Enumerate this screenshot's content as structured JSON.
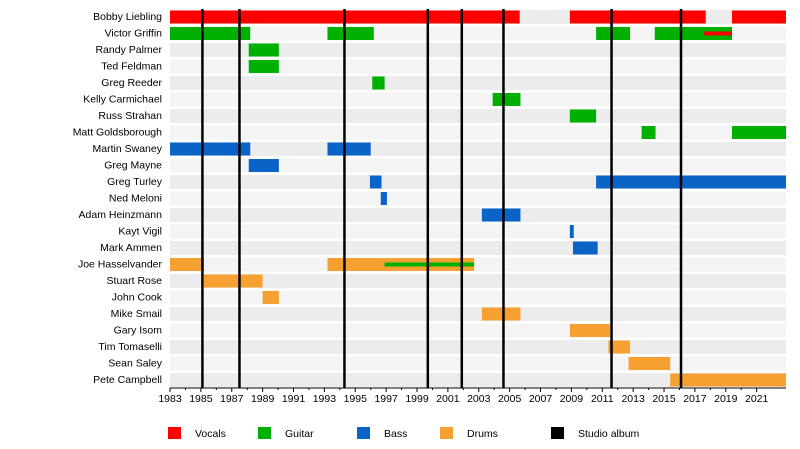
{
  "chart_data": {
    "type": "timeline",
    "categories": [
      "Bobby Liebling",
      "Victor Griffin",
      "Randy Palmer",
      "Ted Feldman",
      "Greg Reeder",
      "Kelly Carmichael",
      "Russ Strahan",
      "Matt Goldsborough",
      "Martin Swaney",
      "Greg Mayne",
      "Greg Turley",
      "Ned Meloni",
      "Adam Heinzmann",
      "Kayt Vigil",
      "Mark Ammen",
      "Joe Hasselvander",
      "Stuart Rose",
      "John Cook",
      "Mike Smail",
      "Gary Isom",
      "Tim Tomaselli",
      "Sean Saley",
      "Pete Campbell"
    ],
    "series": [
      {
        "name": "Vocals",
        "color": "#ff0000",
        "values": [
          [
            [
              1983,
              2005.65
            ],
            [
              2008.9,
              2017.7
            ],
            [
              2019.4,
              2022.9
            ]
          ],
          [],
          [],
          [],
          [],
          [],
          [],
          [],
          [],
          [],
          [],
          [],
          [],
          [],
          [],
          [],
          [],
          [],
          [],
          [],
          [],
          [],
          []
        ],
        "secondary_values": [
          [],
          [
            [
              2017.6,
              2019.4
            ]
          ],
          [],
          [],
          [],
          [],
          [],
          [],
          [],
          [],
          [],
          [],
          [],
          [],
          [],
          [],
          [],
          [],
          [],
          [],
          [],
          [],
          []
        ]
      },
      {
        "name": "Guitar",
        "color": "#00b000",
        "values": [
          [],
          [
            [
              1983,
              1988.2
            ],
            [
              1993.2,
              1996.2
            ],
            [
              2010.6,
              2012.8
            ],
            [
              2014.4,
              2019.4
            ]
          ],
          [
            [
              1988.1,
              1990.05
            ]
          ],
          [
            [
              1988.1,
              1990.05
            ]
          ],
          [
            [
              1996.1,
              1996.9
            ]
          ],
          [
            [
              2003.9,
              2005.7
            ]
          ],
          [
            [
              2008.9,
              2010.6
            ]
          ],
          [
            [
              2013.55,
              2014.45
            ],
            [
              2019.4,
              2022.9
            ]
          ],
          [],
          [],
          [],
          [],
          [],
          [],
          [],
          [],
          [],
          [],
          [],
          [],
          [],
          [],
          []
        ],
        "secondary_values": [
          [],
          [],
          [],
          [],
          [],
          [],
          [],
          [],
          [],
          [],
          [],
          [],
          [],
          [],
          [],
          [
            [
              1996.9,
              2002.7
            ]
          ],
          [],
          [],
          [],
          [],
          [],
          [],
          []
        ]
      },
      {
        "name": "Bass",
        "color": "#0a64c8",
        "values": [
          [],
          [],
          [],
          [],
          [],
          [],
          [],
          [],
          [
            [
              1983,
              1988.2
            ],
            [
              1993.2,
              1996
            ]
          ],
          [
            [
              1988.1,
              1990.05
            ]
          ],
          [
            [
              1995.95,
              1996.7
            ],
            [
              2010.6,
              2022.9
            ]
          ],
          [
            [
              1996.65,
              1997.05
            ]
          ],
          [
            [
              2003.2,
              2005.7
            ]
          ],
          [
            [
              2008.9,
              2009.15
            ]
          ],
          [
            [
              2009.1,
              2010.7
            ]
          ],
          [],
          [],
          [],
          [],
          [],
          [],
          [],
          []
        ]
      },
      {
        "name": "Drums",
        "color": "#f5a030",
        "values": [
          [],
          [],
          [],
          [],
          [],
          [],
          [],
          [],
          [],
          [],
          [],
          [],
          [],
          [],
          [],
          [
            [
              1983,
              1985.2
            ],
            [
              1993.2,
              2002.7
            ]
          ],
          [
            [
              1985.2,
              1989
            ]
          ],
          [
            [
              1989,
              1990.05
            ]
          ],
          [
            [
              2003.2,
              2005.7
            ]
          ],
          [
            [
              2008.9,
              2011.5
            ]
          ],
          [
            [
              2011.4,
              2012.8
            ]
          ],
          [
            [
              2012.7,
              2015.4
            ]
          ],
          [
            [
              2015.4,
              2022.9
            ]
          ]
        ]
      }
    ],
    "markers": {
      "name": "Studio album",
      "color": "#000000",
      "values": [
        1985.1,
        1987.5,
        1994.3,
        1999.7,
        2001.9,
        2004.6,
        2011.6,
        2016.1
      ]
    },
    "xlim": [
      1983,
      2022.9
    ],
    "xticks": [
      1983,
      1985,
      1987,
      1989,
      1991,
      1993,
      1995,
      1997,
      1999,
      2001,
      2003,
      2005,
      2007,
      2009,
      2011,
      2013,
      2015,
      2017,
      2019,
      2021
    ]
  }
}
